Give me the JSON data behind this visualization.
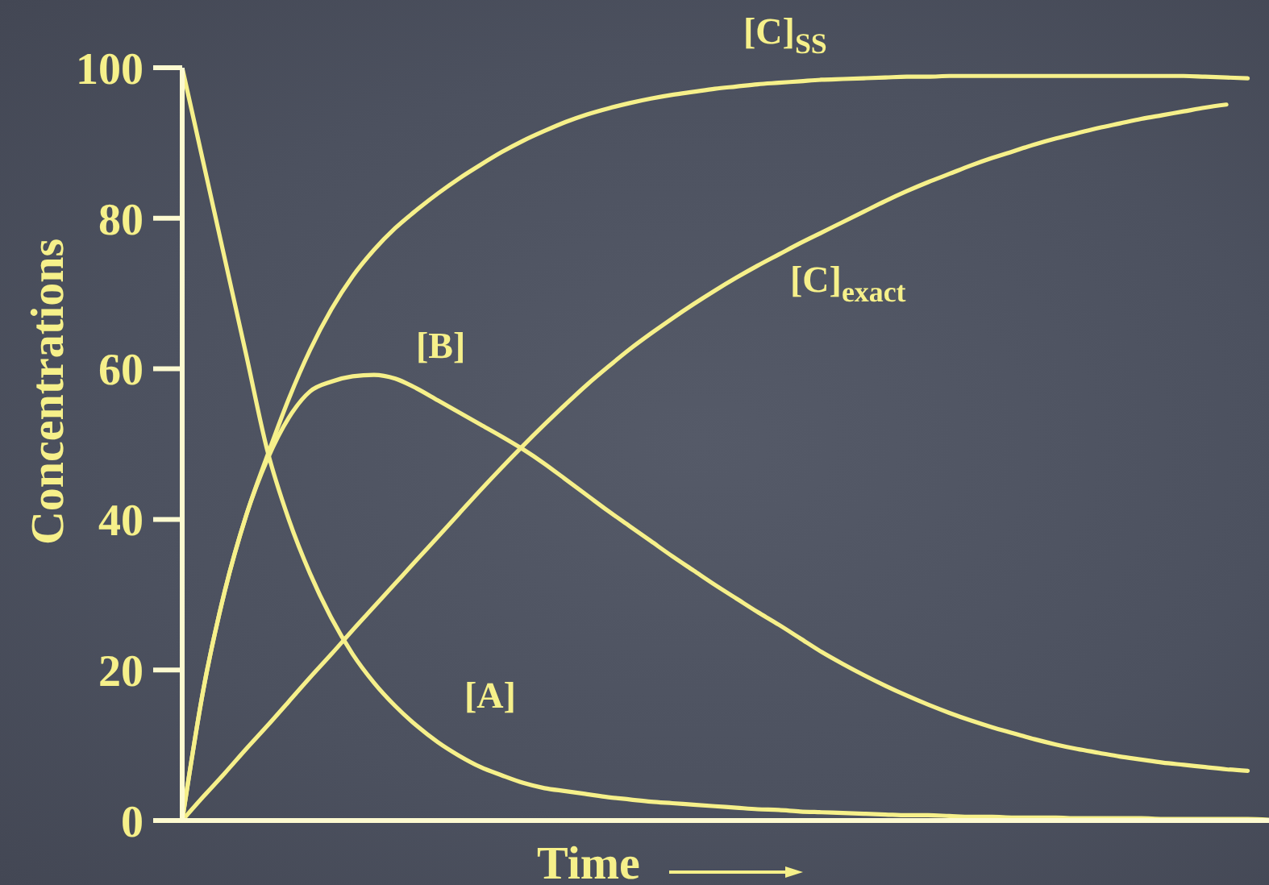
{
  "chart_data": {
    "type": "line",
    "xlabel": "Time",
    "ylabel": "Concentrations",
    "categories": [
      null,
      null,
      null,
      null,
      null,
      null,
      null,
      null,
      null,
      null,
      null,
      null,
      null,
      null,
      null,
      null,
      null,
      null,
      null,
      null,
      null,
      null,
      null,
      null,
      null,
      null,
      null,
      null,
      null,
      null,
      null,
      null,
      null,
      null,
      null,
      null,
      null,
      null,
      null,
      null,
      null,
      null,
      null,
      null,
      null,
      null,
      null,
      null,
      null,
      null,
      null,
      null
    ],
    "series": [
      {
        "name": "[A]",
        "color": "#f6f08a",
        "values": [
          100,
          87.3,
          74.6,
          61.9,
          49.1,
          40.0,
          32.8,
          26.9,
          22.1,
          18.3,
          15.2,
          12.6,
          10.4,
          8.6,
          7.1,
          6.0,
          5.0,
          4.3,
          3.9,
          3.5,
          3.1,
          2.8,
          2.5,
          2.3,
          2.1,
          1.9,
          1.7,
          1.5,
          1.4,
          1.2,
          1.1,
          1.0,
          0.9,
          0.8,
          0.7,
          0.7,
          0.6,
          0.5,
          0.5,
          0.4,
          0.4,
          0.4,
          0.3,
          0.3,
          0.3,
          0.3,
          0.2,
          0.2,
          0.2,
          0.2,
          0.2,
          0.1
        ]
      },
      {
        "name": "[B]",
        "color": "#f6f08a",
        "values": [
          0,
          17.5,
          30.5,
          40.5,
          48.0,
          53.5,
          57.0,
          58.3,
          59.0,
          59.2,
          58.7,
          57.4,
          55.8,
          54.2,
          52.6,
          51.0,
          49.3,
          47.4,
          45.3,
          43.2,
          41.1,
          39.1,
          37.1,
          35.1,
          33.2,
          31.3,
          29.5,
          27.7,
          26.0,
          24.2,
          22.4,
          20.8,
          19.3,
          17.9,
          16.6,
          15.4,
          14.3,
          13.3,
          12.4,
          11.6,
          10.8,
          10.1,
          9.5,
          9.0,
          8.5,
          8.1,
          7.7,
          7.4,
          7.1,
          6.8,
          6.6,
          null
        ]
      },
      {
        "name": "[C]$_{SS}$",
        "color": "#f6f08a",
        "values": [
          0,
          17.5,
          30.5,
          40.5,
          48.5,
          56.0,
          62.5,
          67.9,
          72.3,
          75.8,
          78.7,
          81.1,
          83.3,
          85.3,
          87.1,
          88.8,
          90.3,
          91.6,
          92.8,
          93.8,
          94.6,
          95.3,
          95.9,
          96.4,
          96.8,
          97.2,
          97.5,
          97.8,
          98.0,
          98.2,
          98.4,
          98.5,
          98.6,
          98.7,
          98.8,
          98.8,
          98.9,
          98.9,
          98.9,
          98.9,
          98.9,
          98.9,
          98.9,
          98.9,
          98.9,
          98.9,
          98.9,
          98.9,
          98.8,
          98.7,
          98.6,
          null
        ]
      },
      {
        "name": "[C]$_{exact}$",
        "color": "#f6f08a",
        "values": [
          0,
          3.2,
          6.3,
          9.5,
          12.6,
          15.8,
          19.0,
          22.1,
          25.3,
          28.4,
          31.5,
          34.6,
          37.7,
          40.8,
          43.9,
          46.9,
          49.8,
          52.6,
          55.3,
          57.9,
          60.3,
          62.6,
          64.7,
          66.7,
          68.6,
          70.4,
          72.1,
          73.7,
          75.2,
          76.7,
          78.1,
          79.5,
          80.9,
          82.3,
          83.6,
          84.8,
          85.9,
          87.0,
          88.0,
          88.9,
          89.8,
          90.6,
          91.3,
          92.0,
          92.6,
          93.2,
          93.7,
          94.2,
          94.7,
          95.1,
          null,
          null
        ]
      }
    ],
    "ylim": [
      0,
      100
    ],
    "yticks": [
      0,
      20,
      40,
      60,
      80,
      100
    ],
    "tick_labels": "y",
    "marker": "none"
  }
}
